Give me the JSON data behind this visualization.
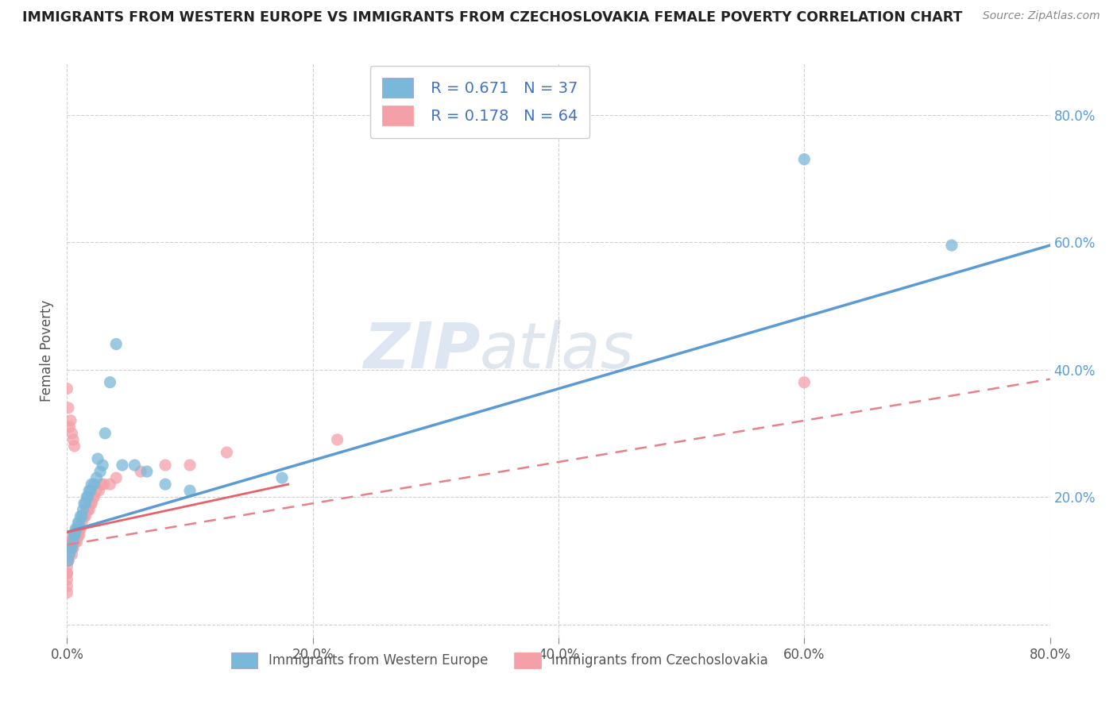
{
  "title": "IMMIGRANTS FROM WESTERN EUROPE VS IMMIGRANTS FROM CZECHOSLOVAKIA FEMALE POVERTY CORRELATION CHART",
  "source": "Source: ZipAtlas.com",
  "ylabel": "Female Poverty",
  "xlim": [
    0.0,
    0.8
  ],
  "ylim": [
    -0.02,
    0.88
  ],
  "xticks": [
    0.0,
    0.2,
    0.4,
    0.6,
    0.8
  ],
  "yticks": [
    0.0,
    0.2,
    0.4,
    0.6,
    0.8
  ],
  "xtick_labels": [
    "0.0%",
    "20.0%",
    "40.0%",
    "60.0%",
    "80.0%"
  ],
  "right_ytick_labels": [
    "",
    "20.0%",
    "40.0%",
    "60.0%",
    "80.0%"
  ],
  "series1_color": "#7ab8d9",
  "series2_color": "#f4a0a8",
  "series1_label": "Immigrants from Western Europe",
  "series2_label": "Immigrants from Czechoslovakia",
  "R1": 0.671,
  "N1": 37,
  "R2": 0.178,
  "N2": 64,
  "legend_color": "#4472c4",
  "watermark_zip": "ZIP",
  "watermark_atlas": "atlas",
  "background_color": "#ffffff",
  "grid_color": "#d0d0d0",
  "trend1_start_y": 0.145,
  "trend1_end_y": 0.595,
  "trend2_start_y": 0.125,
  "trend2_end_y": 0.385,
  "trend_pink_solid_start_y": 0.145,
  "trend_pink_solid_end_y": 0.22,
  "series1_x": [
    0.001,
    0.002,
    0.003,
    0.004,
    0.005,
    0.006,
    0.006,
    0.007,
    0.008,
    0.009,
    0.01,
    0.011,
    0.012,
    0.013,
    0.014,
    0.015,
    0.016,
    0.017,
    0.018,
    0.019,
    0.02,
    0.022,
    0.024,
    0.025,
    0.027,
    0.029,
    0.031,
    0.035,
    0.04,
    0.045,
    0.055,
    0.065,
    0.08,
    0.1,
    0.175,
    0.6,
    0.72
  ],
  "series1_y": [
    0.1,
    0.11,
    0.12,
    0.12,
    0.13,
    0.14,
    0.14,
    0.15,
    0.15,
    0.16,
    0.16,
    0.17,
    0.17,
    0.18,
    0.19,
    0.19,
    0.2,
    0.2,
    0.21,
    0.21,
    0.22,
    0.22,
    0.23,
    0.26,
    0.24,
    0.25,
    0.3,
    0.38,
    0.44,
    0.25,
    0.25,
    0.24,
    0.22,
    0.21,
    0.23,
    0.73,
    0.595
  ],
  "series2_x": [
    0.0,
    0.0,
    0.0,
    0.0,
    0.0,
    0.0,
    0.0,
    0.0,
    0.0,
    0.0,
    0.0,
    0.001,
    0.001,
    0.001,
    0.001,
    0.001,
    0.002,
    0.002,
    0.002,
    0.002,
    0.003,
    0.003,
    0.003,
    0.004,
    0.004,
    0.004,
    0.005,
    0.005,
    0.005,
    0.006,
    0.006,
    0.006,
    0.007,
    0.007,
    0.008,
    0.008,
    0.009,
    0.009,
    0.01,
    0.01,
    0.011,
    0.012,
    0.013,
    0.014,
    0.015,
    0.016,
    0.017,
    0.018,
    0.019,
    0.02,
    0.021,
    0.022,
    0.024,
    0.026,
    0.028,
    0.03,
    0.035,
    0.04,
    0.06,
    0.08,
    0.1,
    0.13,
    0.22,
    0.6
  ],
  "series2_y": [
    0.05,
    0.06,
    0.07,
    0.08,
    0.08,
    0.09,
    0.1,
    0.11,
    0.12,
    0.13,
    0.37,
    0.1,
    0.11,
    0.12,
    0.13,
    0.34,
    0.11,
    0.12,
    0.13,
    0.31,
    0.12,
    0.13,
    0.32,
    0.11,
    0.13,
    0.3,
    0.12,
    0.14,
    0.29,
    0.13,
    0.14,
    0.28,
    0.13,
    0.14,
    0.13,
    0.14,
    0.14,
    0.15,
    0.14,
    0.15,
    0.15,
    0.16,
    0.17,
    0.17,
    0.17,
    0.18,
    0.18,
    0.18,
    0.19,
    0.19,
    0.2,
    0.2,
    0.21,
    0.21,
    0.22,
    0.22,
    0.22,
    0.23,
    0.24,
    0.25,
    0.25,
    0.27,
    0.29,
    0.38
  ]
}
